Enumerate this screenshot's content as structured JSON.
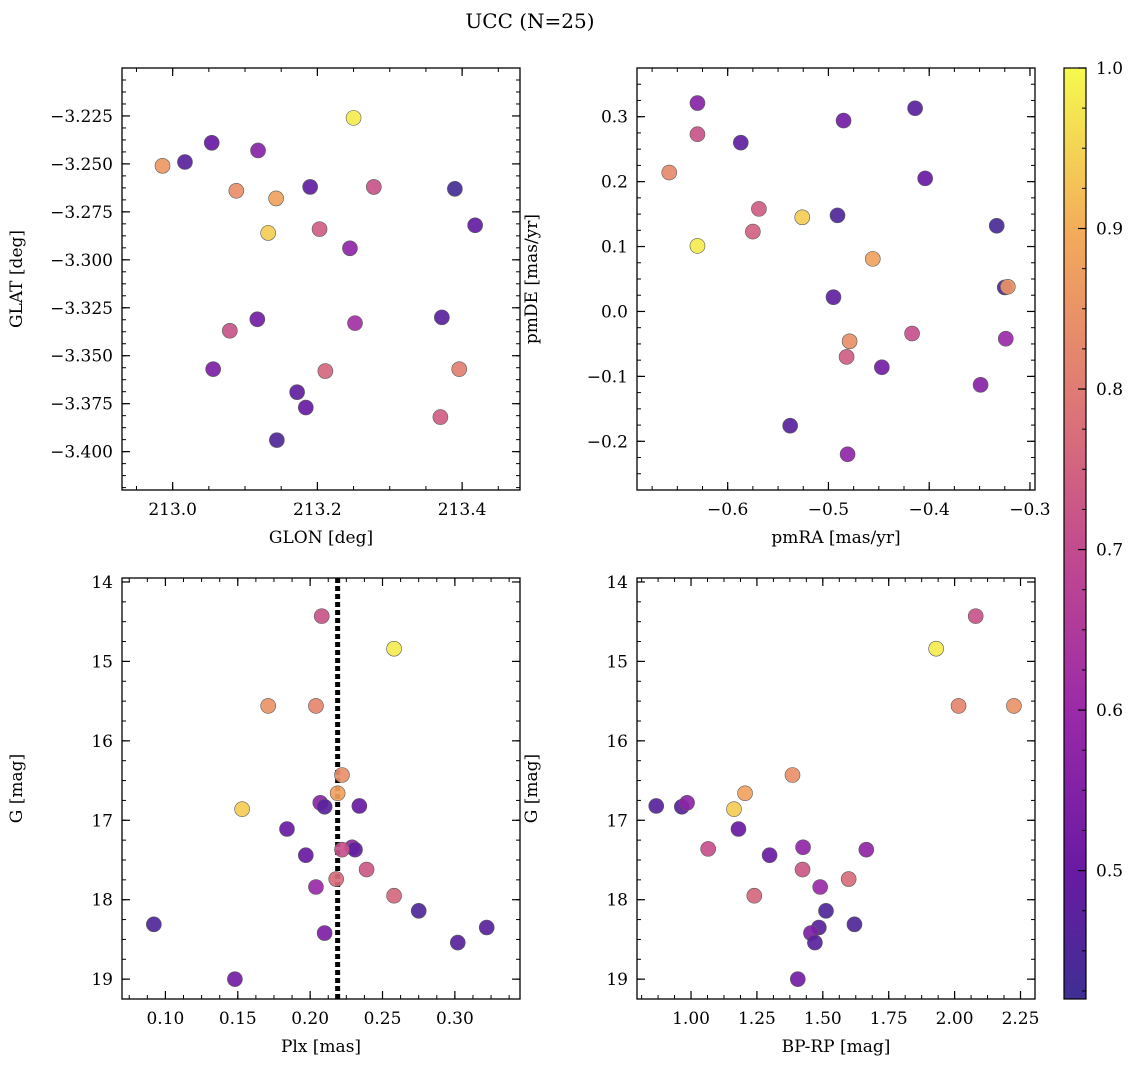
{
  "figure": {
    "title": "UCC (N=25)"
  },
  "colorbar": {
    "min": 0.42,
    "max": 1.0,
    "ticks": [
      0.5,
      0.6,
      0.7,
      0.8,
      0.9,
      1.0
    ],
    "tick_labels": [
      "0.5",
      "0.6",
      "0.7",
      "0.8",
      "0.9",
      "1.0"
    ],
    "colormap": "plasma"
  },
  "chart_data": [
    {
      "id": "glon-glat",
      "type": "scatter",
      "xlabel": "GLON [deg]",
      "ylabel": "GLAT [deg]",
      "xlim": [
        212.93,
        213.48
      ],
      "ylim": [
        -3.42,
        -3.2
      ],
      "xticks": [
        213.0,
        213.2,
        213.4
      ],
      "xtick_labels": [
        "213.0",
        "213.2",
        "213.4"
      ],
      "yticks": [
        -3.225,
        -3.25,
        -3.275,
        -3.3,
        -3.325,
        -3.35,
        -3.375,
        -3.4
      ],
      "ytick_labels": [
        "−3.225",
        "−3.250",
        "−3.275",
        "−3.300",
        "−3.325",
        "−3.350",
        "−3.375",
        "−3.400"
      ],
      "y_inverted": false,
      "points": [
        {
          "x": 213.25,
          "y": -3.226,
          "c": 0.98
        },
        {
          "x": 213.054,
          "y": -3.239,
          "c": 0.5
        },
        {
          "x": 213.017,
          "y": -3.249,
          "c": 0.47
        },
        {
          "x": 212.986,
          "y": -3.251,
          "c": 0.86
        },
        {
          "x": 213.118,
          "y": -3.243,
          "c": 0.56
        },
        {
          "x": 213.088,
          "y": -3.264,
          "c": 0.84
        },
        {
          "x": 213.143,
          "y": -3.268,
          "c": 0.88
        },
        {
          "x": 213.19,
          "y": -3.262,
          "c": 0.48
        },
        {
          "x": 213.278,
          "y": -3.262,
          "c": 0.72
        },
        {
          "x": 213.39,
          "y": -3.263,
          "c": 0.43
        },
        {
          "x": 213.132,
          "y": -3.286,
          "c": 0.94
        },
        {
          "x": 213.203,
          "y": -3.284,
          "c": 0.74
        },
        {
          "x": 213.245,
          "y": -3.294,
          "c": 0.58
        },
        {
          "x": 213.418,
          "y": -3.282,
          "c": 0.49
        },
        {
          "x": 213.079,
          "y": -3.337,
          "c": 0.72
        },
        {
          "x": 213.117,
          "y": -3.331,
          "c": 0.52
        },
        {
          "x": 213.252,
          "y": -3.333,
          "c": 0.62
        },
        {
          "x": 213.372,
          "y": -3.33,
          "c": 0.47
        },
        {
          "x": 213.056,
          "y": -3.357,
          "c": 0.54
        },
        {
          "x": 213.211,
          "y": -3.358,
          "c": 0.76
        },
        {
          "x": 213.396,
          "y": -3.357,
          "c": 0.81
        },
        {
          "x": 213.172,
          "y": -3.369,
          "c": 0.48
        },
        {
          "x": 213.184,
          "y": -3.377,
          "c": 0.5
        },
        {
          "x": 213.37,
          "y": -3.382,
          "c": 0.74
        },
        {
          "x": 213.144,
          "y": -3.394,
          "c": 0.45
        }
      ]
    },
    {
      "id": "pmra-pmde",
      "type": "scatter",
      "xlabel": "pmRA [mas/yr]",
      "ylabel": "pmDE [mas/yr]",
      "xlim": [
        -0.69,
        -0.295
      ],
      "ylim": [
        -0.275,
        0.375
      ],
      "xticks": [
        -0.6,
        -0.5,
        -0.4,
        -0.3
      ],
      "xtick_labels": [
        "−0.6",
        "−0.5",
        "−0.4",
        "−0.3"
      ],
      "yticks": [
        -0.2,
        -0.1,
        0.0,
        0.1,
        0.2,
        0.3
      ],
      "ytick_labels": [
        "−0.2",
        "−0.1",
        "0.0",
        "0.1",
        "0.2",
        "0.3"
      ],
      "y_inverted": false,
      "points": [
        {
          "x": -0.63,
          "y": 0.321,
          "c": 0.56
        },
        {
          "x": -0.414,
          "y": 0.313,
          "c": 0.47
        },
        {
          "x": -0.485,
          "y": 0.294,
          "c": 0.52
        },
        {
          "x": -0.63,
          "y": 0.273,
          "c": 0.72
        },
        {
          "x": -0.587,
          "y": 0.26,
          "c": 0.48
        },
        {
          "x": -0.658,
          "y": 0.214,
          "c": 0.83
        },
        {
          "x": -0.404,
          "y": 0.205,
          "c": 0.5
        },
        {
          "x": -0.569,
          "y": 0.158,
          "c": 0.74
        },
        {
          "x": -0.526,
          "y": 0.145,
          "c": 0.94
        },
        {
          "x": -0.491,
          "y": 0.148,
          "c": 0.45
        },
        {
          "x": -0.575,
          "y": 0.123,
          "c": 0.75
        },
        {
          "x": -0.333,
          "y": 0.132,
          "c": 0.44
        },
        {
          "x": -0.63,
          "y": 0.101,
          "c": 0.98
        },
        {
          "x": -0.456,
          "y": 0.081,
          "c": 0.88
        },
        {
          "x": -0.325,
          "y": 0.037,
          "c": 0.45
        },
        {
          "x": -0.322,
          "y": 0.038,
          "c": 0.85
        },
        {
          "x": -0.495,
          "y": 0.022,
          "c": 0.48
        },
        {
          "x": -0.417,
          "y": -0.034,
          "c": 0.71
        },
        {
          "x": -0.324,
          "y": -0.042,
          "c": 0.6
        },
        {
          "x": -0.479,
          "y": -0.046,
          "c": 0.84
        },
        {
          "x": -0.482,
          "y": -0.07,
          "c": 0.74
        },
        {
          "x": -0.447,
          "y": -0.086,
          "c": 0.52
        },
        {
          "x": -0.349,
          "y": -0.113,
          "c": 0.56
        },
        {
          "x": -0.538,
          "y": -0.176,
          "c": 0.47
        },
        {
          "x": -0.481,
          "y": -0.22,
          "c": 0.58
        }
      ]
    },
    {
      "id": "plx-g",
      "type": "scatter",
      "xlabel": "Plx [mas]",
      "ylabel": "G [mag]",
      "xlim": [
        0.07,
        0.345
      ],
      "ylim": [
        13.95,
        19.25
      ],
      "xticks": [
        0.1,
        0.15,
        0.2,
        0.25,
        0.3
      ],
      "xtick_labels": [
        "0.10",
        "0.15",
        "0.20",
        "0.25",
        "0.30"
      ],
      "yticks": [
        14,
        15,
        16,
        17,
        18,
        19
      ],
      "ytick_labels": [
        "14",
        "15",
        "16",
        "17",
        "18",
        "19"
      ],
      "y_inverted": true,
      "vline": 0.219,
      "points": [
        {
          "x": 0.208,
          "y": 14.43,
          "c": 0.72
        },
        {
          "x": 0.258,
          "y": 14.84,
          "c": 0.98
        },
        {
          "x": 0.171,
          "y": 15.56,
          "c": 0.85
        },
        {
          "x": 0.204,
          "y": 15.56,
          "c": 0.82
        },
        {
          "x": 0.222,
          "y": 16.43,
          "c": 0.84
        },
        {
          "x": 0.219,
          "y": 16.66,
          "c": 0.88
        },
        {
          "x": 0.153,
          "y": 16.86,
          "c": 0.94
        },
        {
          "x": 0.207,
          "y": 16.78,
          "c": 0.57
        },
        {
          "x": 0.21,
          "y": 16.83,
          "c": 0.47
        },
        {
          "x": 0.234,
          "y": 16.82,
          "c": 0.5
        },
        {
          "x": 0.184,
          "y": 17.11,
          "c": 0.5
        },
        {
          "x": 0.229,
          "y": 17.34,
          "c": 0.58
        },
        {
          "x": 0.231,
          "y": 17.37,
          "c": 0.48
        },
        {
          "x": 0.222,
          "y": 17.37,
          "c": 0.71
        },
        {
          "x": 0.197,
          "y": 17.44,
          "c": 0.5
        },
        {
          "x": 0.239,
          "y": 17.62,
          "c": 0.73
        },
        {
          "x": 0.218,
          "y": 17.74,
          "c": 0.77
        },
        {
          "x": 0.204,
          "y": 17.84,
          "c": 0.6
        },
        {
          "x": 0.258,
          "y": 17.95,
          "c": 0.76
        },
        {
          "x": 0.275,
          "y": 18.14,
          "c": 0.45
        },
        {
          "x": 0.092,
          "y": 18.31,
          "c": 0.45
        },
        {
          "x": 0.322,
          "y": 18.35,
          "c": 0.47
        },
        {
          "x": 0.21,
          "y": 18.42,
          "c": 0.54
        },
        {
          "x": 0.302,
          "y": 18.54,
          "c": 0.47
        },
        {
          "x": 0.148,
          "y": 19.0,
          "c": 0.52
        }
      ]
    },
    {
      "id": "bprp-g",
      "type": "scatter",
      "xlabel": "BP-RP [mag]",
      "ylabel": "G [mag]",
      "xlim": [
        0.795,
        2.305
      ],
      "ylim": [
        13.95,
        19.25
      ],
      "xticks": [
        1.0,
        1.25,
        1.5,
        1.75,
        2.0,
        2.25
      ],
      "xtick_labels": [
        "1.00",
        "1.25",
        "1.50",
        "1.75",
        "2.00",
        "2.25"
      ],
      "yticks": [
        14,
        15,
        16,
        17,
        18,
        19
      ],
      "ytick_labels": [
        "14",
        "15",
        "16",
        "17",
        "18",
        "19"
      ],
      "y_inverted": true,
      "points": [
        {
          "x": 2.08,
          "y": 14.43,
          "c": 0.72
        },
        {
          "x": 1.93,
          "y": 14.84,
          "c": 0.98
        },
        {
          "x": 2.015,
          "y": 15.56,
          "c": 0.82
        },
        {
          "x": 2.225,
          "y": 15.56,
          "c": 0.85
        },
        {
          "x": 1.385,
          "y": 16.43,
          "c": 0.84
        },
        {
          "x": 1.205,
          "y": 16.66,
          "c": 0.88
        },
        {
          "x": 1.163,
          "y": 16.86,
          "c": 0.94
        },
        {
          "x": 0.868,
          "y": 16.82,
          "c": 0.47
        },
        {
          "x": 0.965,
          "y": 16.83,
          "c": 0.47
        },
        {
          "x": 0.985,
          "y": 16.78,
          "c": 0.57
        },
        {
          "x": 1.18,
          "y": 17.11,
          "c": 0.5
        },
        {
          "x": 1.065,
          "y": 17.36,
          "c": 0.71
        },
        {
          "x": 1.425,
          "y": 17.34,
          "c": 0.58
        },
        {
          "x": 1.665,
          "y": 17.37,
          "c": 0.58
        },
        {
          "x": 1.298,
          "y": 17.44,
          "c": 0.5
        },
        {
          "x": 1.423,
          "y": 17.62,
          "c": 0.73
        },
        {
          "x": 1.49,
          "y": 17.84,
          "c": 0.6
        },
        {
          "x": 1.598,
          "y": 17.74,
          "c": 0.77
        },
        {
          "x": 1.24,
          "y": 17.95,
          "c": 0.76
        },
        {
          "x": 1.512,
          "y": 18.14,
          "c": 0.45
        },
        {
          "x": 1.62,
          "y": 18.31,
          "c": 0.45
        },
        {
          "x": 1.485,
          "y": 18.35,
          "c": 0.47
        },
        {
          "x": 1.455,
          "y": 18.42,
          "c": 0.54
        },
        {
          "x": 1.47,
          "y": 18.54,
          "c": 0.47
        },
        {
          "x": 1.405,
          "y": 19.0,
          "c": 0.52
        }
      ]
    }
  ]
}
